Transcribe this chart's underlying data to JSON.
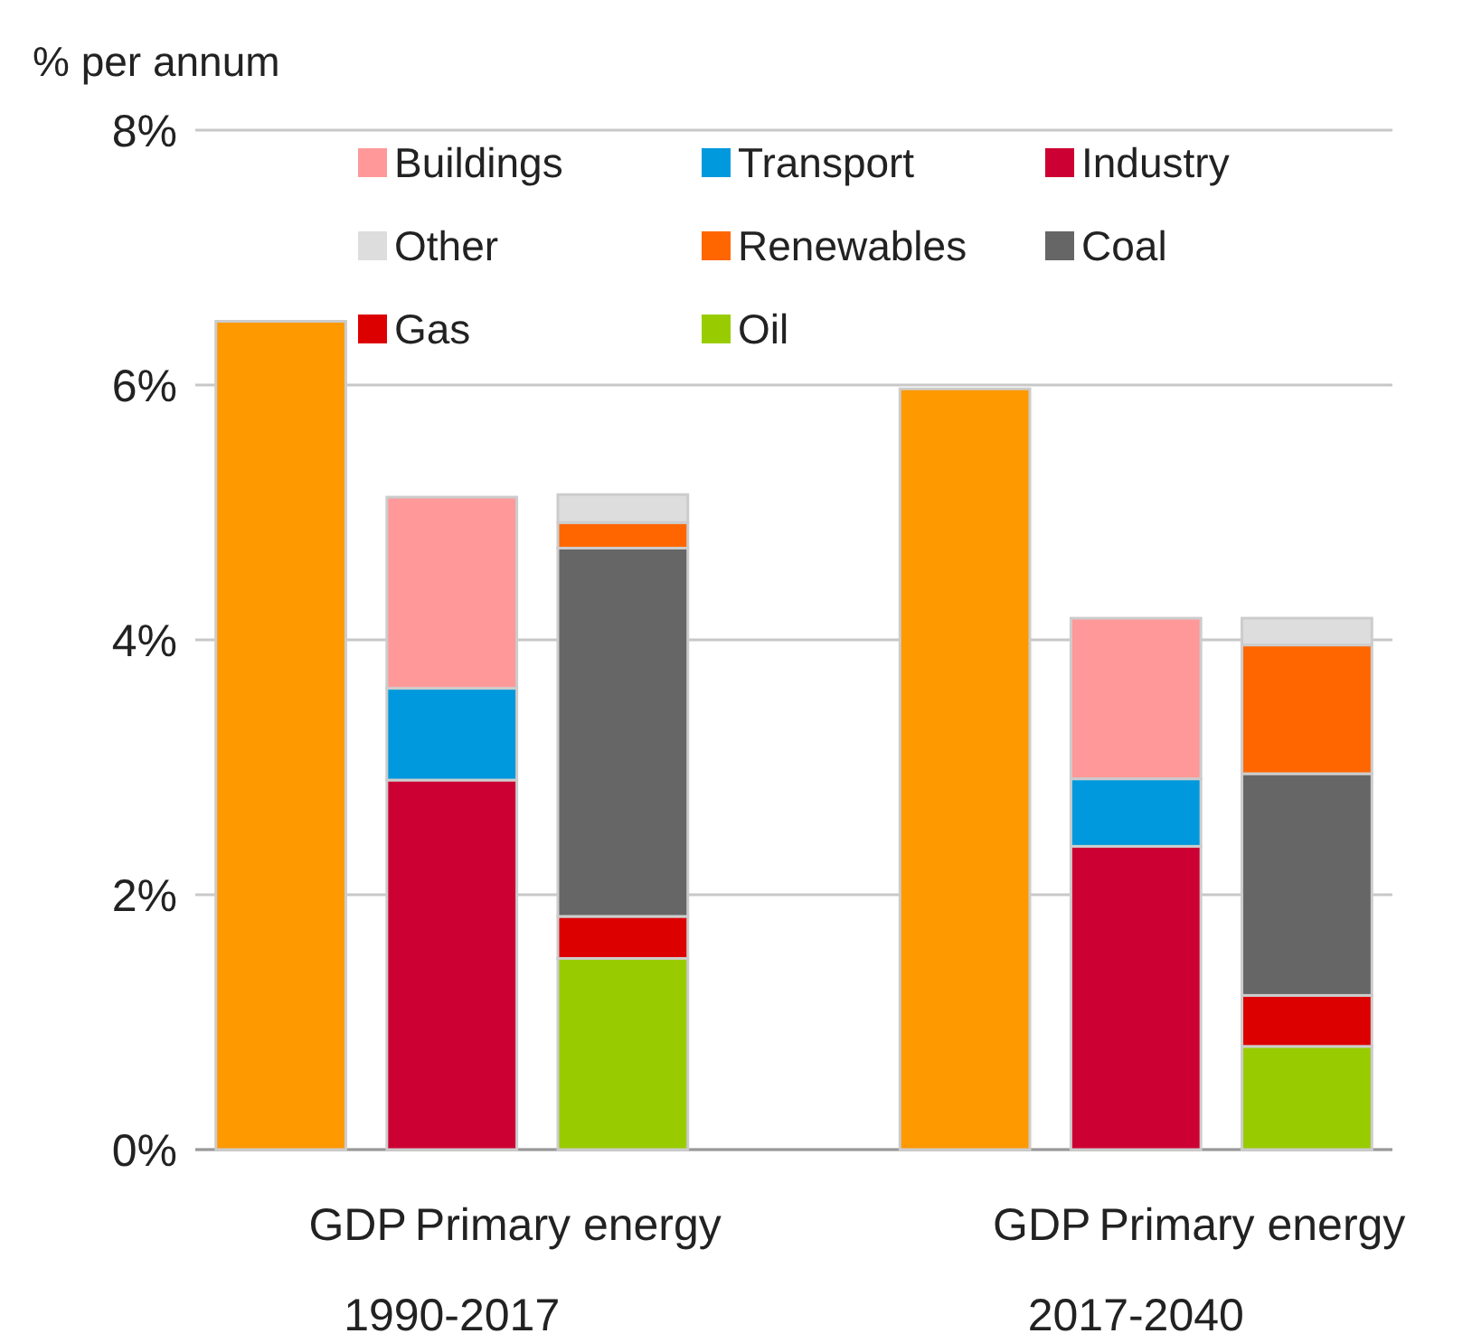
{
  "chart_data": {
    "type": "bar",
    "stacked": true,
    "ylabel": "% per annum",
    "categories": [
      "GDP",
      null,
      null,
      null,
      "GDP",
      null,
      null,
      null
    ],
    "series": [
      {
        "color": "#ff9900",
        "values": [
          6.5,
          null,
          null,
          null,
          5.97,
          null,
          null,
          null
        ]
      },
      {
        "name": "Industry",
        "color": "#cc0033",
        "values": [
          null,
          2.9,
          null,
          null,
          null,
          2.38,
          null,
          null
        ]
      },
      {
        "name": "Transport",
        "color": "#0099dd",
        "values": [
          null,
          0.72,
          null,
          null,
          null,
          0.53,
          null,
          null
        ]
      },
      {
        "name": "Buildings",
        "color": "#ff9999",
        "values": [
          null,
          1.5,
          null,
          null,
          null,
          1.26,
          null,
          null
        ]
      },
      {
        "name": "Oil",
        "color": "#99cc00",
        "values": [
          null,
          null,
          1.5,
          null,
          null,
          null,
          0.81,
          null
        ]
      },
      {
        "name": "Gas",
        "color": "#dd0000",
        "values": [
          null,
          null,
          0.33,
          null,
          null,
          null,
          0.4,
          null
        ]
      },
      {
        "name": "Coal",
        "color": "#666666",
        "values": [
          null,
          null,
          2.89,
          null,
          null,
          null,
          1.74,
          null
        ]
      },
      {
        "name": "Renewables",
        "color": "#ff6600",
        "values": [
          null,
          null,
          0.2,
          null,
          null,
          null,
          1.01,
          null
        ]
      },
      {
        "name": "Other",
        "color": "#dddddd",
        "values": [
          null,
          null,
          0.22,
          null,
          null,
          null,
          0.21,
          null
        ]
      }
    ],
    "ylim": [
      0,
      8
    ],
    "yticks": [
      {
        "value": 0,
        "label": "0%"
      },
      {
        "value": 2,
        "label": "2%"
      },
      {
        "value": 4,
        "label": "4%"
      },
      {
        "value": 6,
        "label": "6%"
      },
      {
        "value": 8,
        "label": "8%"
      }
    ],
    "grid": "y",
    "legend": "top",
    "annotations": [
      "Primary energy",
      "Primary energy",
      "1990-2017",
      "2017-2040"
    ]
  }
}
